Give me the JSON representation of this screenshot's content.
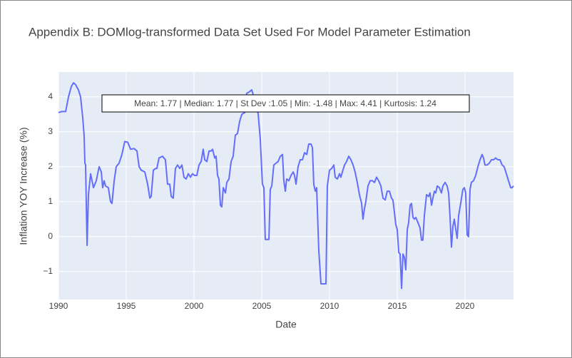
{
  "chart_data": {
    "type": "line",
    "title": "Appendix B: DOMlog-transformed Data Set Used For Model Parameter Estimation",
    "x_label": "Date",
    "y_label": "Inflation YOY Increase (%)",
    "annotation": "Mean: 1.77 | Median: 1.77 | St Dev :1.05 | Min: -1.48 | Max: 4.41 | Kurtosis: 1.24",
    "color": "#636efa",
    "grid": true,
    "xlim": [
      1990,
      2023.58
    ],
    "xticks": [
      1990,
      1995,
      2000,
      2005,
      2010,
      2015,
      2020
    ],
    "ylim": [
      -1.8,
      4.71
    ],
    "yticks": [
      {
        "value": -1,
        "label": "−1"
      },
      0,
      1,
      2,
      3,
      4
    ],
    "x": [
      1990.0,
      1990.26,
      1990.53,
      1990.74,
      1990.95,
      1991.11,
      1991.26,
      1991.47,
      1991.63,
      1991.79,
      1991.89,
      1991.95,
      1992.0,
      1992.11,
      1992.21,
      1992.37,
      1992.58,
      1992.79,
      1993.0,
      1993.16,
      1993.26,
      1993.37,
      1993.47,
      1993.68,
      1993.84,
      1993.95,
      1994.11,
      1994.26,
      1994.47,
      1994.68,
      1994.89,
      1995.11,
      1995.32,
      1995.58,
      1995.79,
      1995.95,
      1996.11,
      1996.37,
      1996.58,
      1996.74,
      1996.84,
      1997.0,
      1997.16,
      1997.26,
      1997.42,
      1997.68,
      1997.89,
      1998.05,
      1998.21,
      1998.32,
      1998.47,
      1998.63,
      1998.79,
      1998.95,
      1999.11,
      1999.26,
      1999.42,
      1999.58,
      1999.74,
      1999.89,
      2000.05,
      2000.21,
      2000.37,
      2000.53,
      2000.68,
      2000.79,
      2000.95,
      2001.11,
      2001.26,
      2001.37,
      2001.53,
      2001.63,
      2001.74,
      2001.84,
      2001.95,
      2002.05,
      2002.16,
      2002.32,
      2002.42,
      2002.58,
      2002.74,
      2002.89,
      2003.05,
      2003.21,
      2003.37,
      2003.53,
      2003.74,
      2003.89,
      2004.11,
      2004.26,
      2004.42,
      2004.53,
      2004.74,
      2004.89,
      2005.05,
      2005.16,
      2005.26,
      2005.53,
      2005.63,
      2005.74,
      2005.89,
      2006.05,
      2006.21,
      2006.37,
      2006.53,
      2006.63,
      2006.74,
      2006.84,
      2007.0,
      2007.16,
      2007.32,
      2007.42,
      2007.53,
      2007.68,
      2007.84,
      2008.0,
      2008.16,
      2008.32,
      2008.47,
      2008.63,
      2008.74,
      2008.84,
      2008.95,
      2009.05,
      2009.21,
      2009.37,
      2009.74,
      2009.84,
      2010.0,
      2010.16,
      2010.32,
      2010.42,
      2010.58,
      2010.74,
      2010.84,
      2010.95,
      2011.11,
      2011.26,
      2011.42,
      2011.58,
      2011.74,
      2011.89,
      2012.05,
      2012.21,
      2012.37,
      2012.47,
      2012.58,
      2012.68,
      2012.84,
      2013.0,
      2013.16,
      2013.32,
      2013.47,
      2013.63,
      2013.79,
      2013.95,
      2014.11,
      2014.26,
      2014.42,
      2014.58,
      2014.68,
      2014.79,
      2014.89,
      2015.0,
      2015.11,
      2015.21,
      2015.32,
      2015.42,
      2015.53,
      2015.63,
      2015.74,
      2015.84,
      2015.95,
      2016.05,
      2016.16,
      2016.26,
      2016.37,
      2016.53,
      2016.68,
      2016.79,
      2016.89,
      2017.0,
      2017.16,
      2017.32,
      2017.42,
      2017.53,
      2017.63,
      2017.74,
      2017.84,
      2017.95,
      2018.11,
      2018.26,
      2018.37,
      2018.53,
      2018.68,
      2018.79,
      2018.89,
      2019.0,
      2019.11,
      2019.21,
      2019.32,
      2019.42,
      2019.53,
      2019.68,
      2019.84,
      2019.95,
      2020.05,
      2020.16,
      2020.26,
      2020.37,
      2020.47,
      2020.63,
      2020.79,
      2020.95,
      2021.11,
      2021.26,
      2021.37,
      2021.47,
      2021.63,
      2021.79,
      2021.95,
      2022.11,
      2022.26,
      2022.42,
      2022.58,
      2022.74,
      2022.89,
      2023.05,
      2023.21,
      2023.37,
      2023.47,
      2023.58
    ],
    "values": [
      3.55,
      3.58,
      3.58,
      4.0,
      4.3,
      4.4,
      4.35,
      4.2,
      4.0,
      3.4,
      2.9,
      2.1,
      2.05,
      -0.25,
      1.2,
      1.8,
      1.4,
      1.6,
      2.0,
      1.85,
      1.4,
      1.6,
      1.45,
      1.4,
      1.0,
      0.95,
      1.6,
      2.0,
      2.1,
      2.35,
      2.72,
      2.7,
      2.5,
      2.52,
      2.45,
      2.0,
      1.9,
      1.85,
      1.5,
      1.1,
      1.15,
      1.9,
      1.95,
      1.95,
      2.25,
      2.3,
      2.2,
      1.5,
      1.5,
      1.15,
      1.1,
      1.95,
      2.05,
      1.95,
      2.05,
      1.7,
      1.65,
      1.8,
      1.7,
      1.8,
      1.75,
      1.75,
      2.05,
      2.15,
      2.5,
      2.2,
      2.15,
      2.45,
      2.45,
      2.5,
      2.25,
      2.3,
      1.75,
      1.65,
      0.9,
      0.85,
      1.4,
      1.25,
      1.55,
      1.65,
      2.15,
      2.3,
      2.9,
      2.95,
      3.3,
      3.5,
      3.55,
      4.1,
      4.15,
      4.2,
      4.0,
      3.9,
      3.5,
      2.8,
      1.5,
      1.4,
      -0.08,
      -0.08,
      1.35,
      1.45,
      2.05,
      2.1,
      2.15,
      2.3,
      2.35,
      1.6,
      1.3,
      1.65,
      1.6,
      1.75,
      1.85,
      1.75,
      1.5,
      2.0,
      2.2,
      2.2,
      2.4,
      2.35,
      2.65,
      2.65,
      2.55,
      1.5,
      1.3,
      1.4,
      -0.4,
      -1.35,
      -1.35,
      1.45,
      1.9,
      1.95,
      2.05,
      1.7,
      1.65,
      1.8,
      1.7,
      1.85,
      2.05,
      2.15,
      2.3,
      2.2,
      2.05,
      1.85,
      1.55,
      1.2,
      0.95,
      0.5,
      0.8,
      1.0,
      1.45,
      1.6,
      1.6,
      1.55,
      1.7,
      1.6,
      1.45,
      1.1,
      1.05,
      1.3,
      1.3,
      1.1,
      1.05,
      0.7,
      0.35,
      0.2,
      -0.45,
      -0.5,
      -1.48,
      -0.5,
      -0.6,
      -0.95,
      0.2,
      0.4,
      0.9,
      0.95,
      0.55,
      0.5,
      0.55,
      0.4,
      0.25,
      -0.1,
      -0.1,
      0.6,
      1.2,
      1.15,
      1.25,
      0.9,
      1.1,
      1.3,
      1.25,
      1.45,
      1.4,
      1.25,
      1.45,
      1.55,
      1.45,
      1.25,
      0.6,
      -0.3,
      0.3,
      0.5,
      0.2,
      -0.05,
      0.6,
      0.95,
      1.35,
      1.4,
      1.25,
      0.05,
      0.0,
      1.35,
      1.55,
      1.6,
      1.75,
      2.0,
      2.2,
      2.35,
      2.25,
      2.05,
      2.05,
      2.1,
      2.2,
      2.2,
      2.25,
      2.2,
      2.2,
      2.05,
      2.0,
      1.8,
      1.6,
      1.4,
      1.4,
      1.45
    ]
  }
}
